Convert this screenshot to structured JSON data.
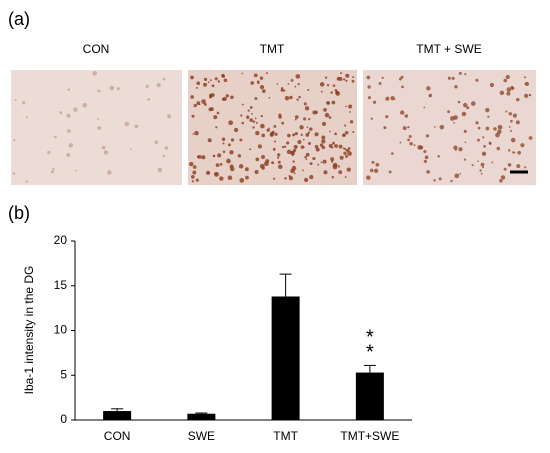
{
  "panels": {
    "a": {
      "label": "(a)",
      "images": [
        {
          "label": "CON"
        },
        {
          "label": "TMT"
        },
        {
          "label": "TMT + SWE"
        }
      ]
    },
    "b": {
      "label": "(b)"
    }
  },
  "chart_data": {
    "type": "bar",
    "ylabel": "Iba-1 intensity in the DG",
    "categories": [
      "CON",
      "SWE",
      "TMT",
      "TMT+SWE"
    ],
    "values": [
      1.0,
      0.7,
      13.8,
      5.3
    ],
    "errors": [
      0.25,
      0.08,
      2.5,
      0.8
    ],
    "color": "#000000",
    "ylim": [
      0,
      20
    ],
    "yticks": [
      0,
      5,
      10,
      15,
      20
    ],
    "grid": false,
    "annotations": [
      "*",
      "*"
    ]
  }
}
